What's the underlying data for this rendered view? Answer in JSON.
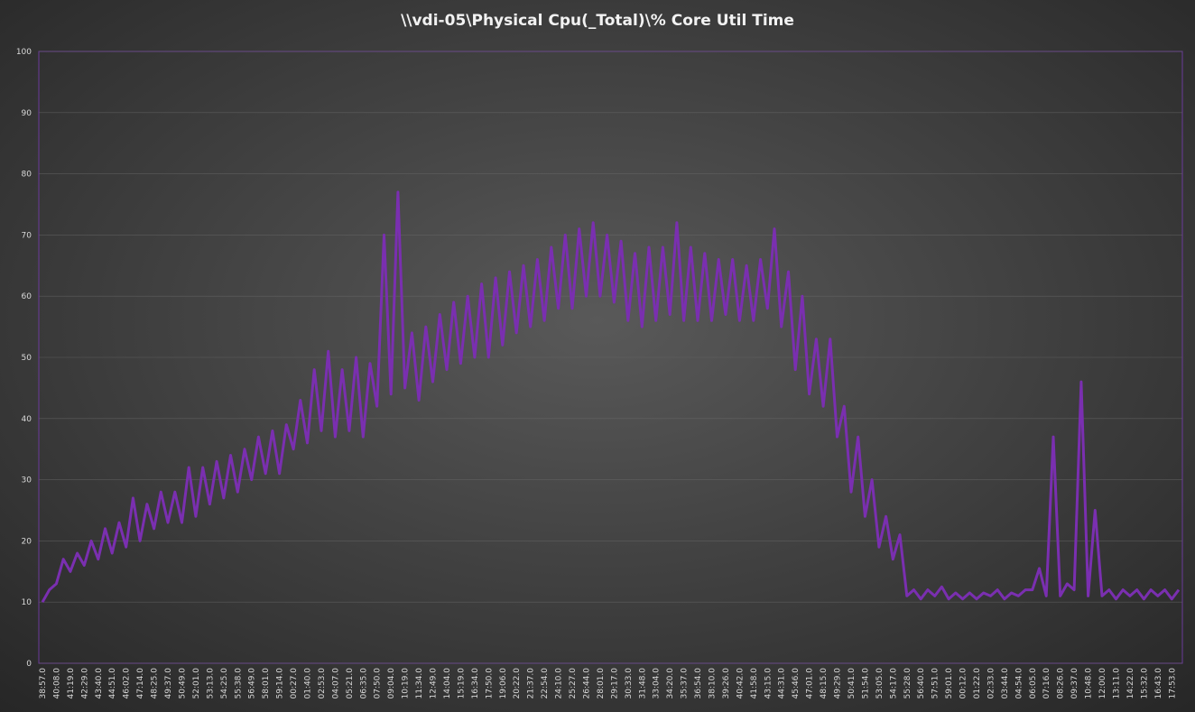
{
  "chart_data": {
    "type": "line",
    "title": "\\\\vdi-05\\Physical Cpu(_Total)\\% Core Util Time",
    "categories": [
      "38:57.0",
      null,
      "40:08.0",
      null,
      "41:19.0",
      null,
      "42:29.0",
      null,
      "43:40.0",
      null,
      "44:51.0",
      null,
      "46:02.0",
      null,
      "47:14.0",
      null,
      "48:25.0",
      null,
      "49:37.0",
      null,
      "50:49.0",
      null,
      "52:01.0",
      null,
      "53:13.0",
      null,
      "54:25.0",
      null,
      "55:38.0",
      null,
      "56:49.0",
      null,
      "58:01.0",
      null,
      "59:14.0",
      null,
      "00:27.0",
      null,
      "01:40.0",
      null,
      "02:53.0",
      null,
      "04:07.0",
      null,
      "05:21.0",
      null,
      "06:35.0",
      null,
      "07:50.0",
      null,
      "09:04.0",
      null,
      "10:19.0",
      null,
      "11:34.0",
      null,
      "12:49.0",
      null,
      "14:04.0",
      null,
      "15:19.0",
      null,
      "16:34.0",
      null,
      "17:50.0",
      null,
      "19:06.0",
      null,
      "20:22.0",
      null,
      "21:37.0",
      null,
      "22:54.0",
      null,
      "24:10.0",
      null,
      "25:27.0",
      null,
      "26:44.0",
      null,
      "28:01.0",
      null,
      "29:17.0",
      null,
      "30:33.0",
      null,
      "31:48.0",
      null,
      "33:04.0",
      null,
      "34:20.0",
      null,
      "35:37.0",
      null,
      "36:54.0",
      null,
      "38:10.0",
      null,
      "39:26.0",
      null,
      "40:42.0",
      null,
      "41:58.0",
      null,
      "43:15.0",
      null,
      "44:31.0",
      null,
      "45:46.0",
      null,
      "47:01.0",
      null,
      "48:15.0",
      null,
      "49:29.0",
      null,
      "50:41.0",
      null,
      "51:54.0",
      null,
      "53:05.0",
      null,
      "54:17.0",
      null,
      "55:28.0",
      null,
      "56:40.0",
      null,
      "57:51.0",
      null,
      "59:01.0",
      null,
      "00:12.0",
      null,
      "01:22.0",
      null,
      "02:33.0",
      null,
      "03:44.0",
      null,
      "04:54.0",
      null,
      "06:05.0",
      null,
      "07:16.0",
      null,
      "08:26.0",
      null,
      "09:37.0",
      null,
      "10:48.0",
      null,
      "12:00.0",
      null,
      "13:11.0",
      null,
      "14:22.0",
      null,
      "15:32.0",
      null,
      "16:43.0",
      null,
      "17:53.0",
      null
    ],
    "series": [
      {
        "name": "\\\\vdi-05\\Physical Cpu(_Total)\\% Core Util Time",
        "color": "#7a2fb0",
        "values": [
          10,
          12,
          13,
          17,
          15,
          18,
          16,
          20,
          17,
          22,
          18,
          23,
          19,
          27,
          20,
          26,
          22,
          28,
          23,
          28,
          23,
          32,
          24,
          32,
          26,
          33,
          27,
          34,
          28,
          35,
          30,
          37,
          31,
          38,
          31,
          39,
          35,
          43,
          36,
          48,
          38,
          51,
          37,
          48,
          38,
          50,
          37,
          49,
          42,
          70,
          44,
          77,
          45,
          54,
          43,
          55,
          46,
          57,
          48,
          59,
          49,
          60,
          50,
          62,
          50,
          63,
          52,
          64,
          54,
          65,
          55,
          66,
          56,
          68,
          58,
          70,
          58,
          71,
          60,
          72,
          60,
          70,
          59,
          69,
          56,
          67,
          55,
          68,
          56,
          68,
          57,
          72,
          56,
          68,
          56,
          67,
          56,
          66,
          57,
          66,
          56,
          65,
          56,
          66,
          58,
          71,
          55,
          64,
          48,
          60,
          44,
          53,
          42,
          53,
          37,
          42,
          28,
          37,
          24,
          30,
          19,
          24,
          17,
          21,
          11,
          12,
          10.5,
          12,
          11,
          12.5,
          10.5,
          11.5,
          10.5,
          11.5,
          10.5,
          11.5,
          11,
          12,
          10.5,
          11.5,
          11,
          12,
          12,
          15.5,
          11,
          37,
          11,
          13,
          12,
          46,
          11,
          25,
          11,
          12,
          10.5,
          12,
          11,
          12,
          10.5,
          12,
          11,
          12,
          10.5,
          12
        ]
      }
    ],
    "ylim": [
      0,
      100
    ],
    "yticks": [
      0,
      10,
      20,
      30,
      40,
      50,
      60,
      70,
      80,
      90,
      100
    ],
    "grid": true
  }
}
